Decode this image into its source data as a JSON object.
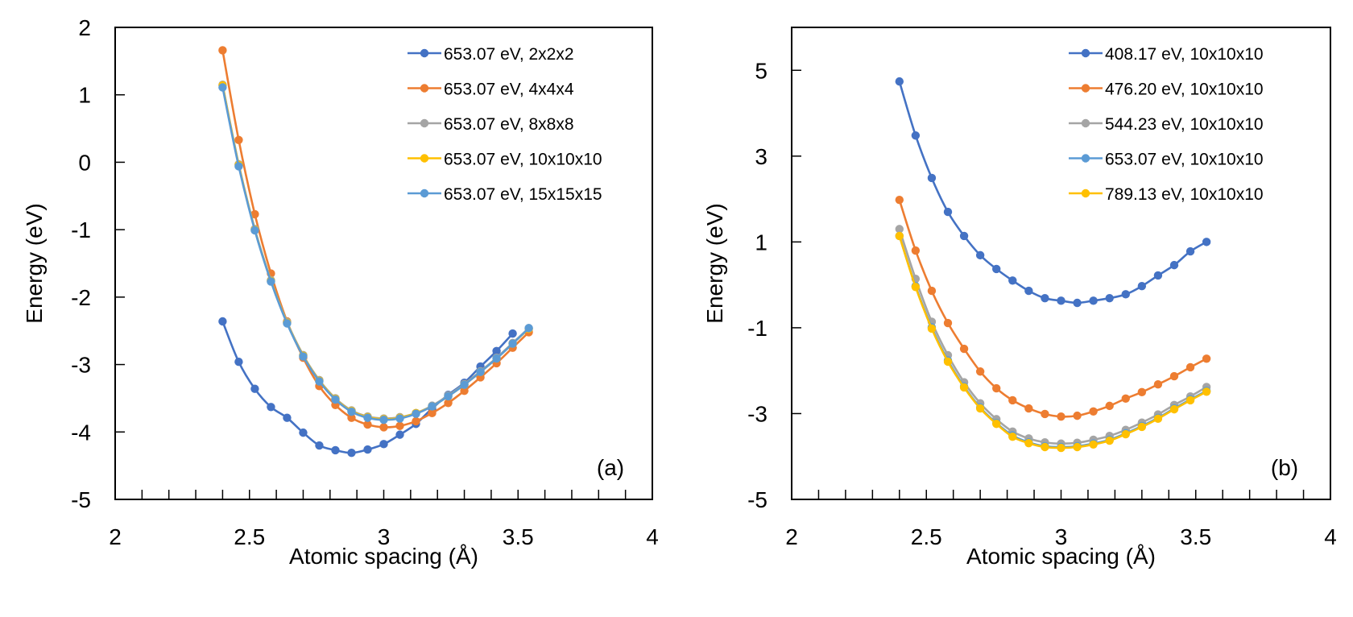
{
  "chart_data": [
    {
      "type": "line",
      "panel_label": "(a)",
      "xlabel": "Atomic spacing (Å)",
      "ylabel": "Energy (eV)",
      "xlim": [
        2,
        4
      ],
      "ylim": [
        -5,
        2
      ],
      "xticks": [
        2,
        2.5,
        3,
        3.5,
        4
      ],
      "xtick_labels": [
        "2",
        "2.5",
        "3",
        "3.5",
        "4"
      ],
      "x_minor_step": 0.1,
      "yticks": [
        -5,
        -4,
        -3,
        -2,
        -1,
        0,
        1,
        2
      ],
      "ytick_labels": [
        "-5",
        "-4",
        "-3",
        "-2",
        "-1",
        "0",
        "1",
        "2"
      ],
      "grid": false,
      "legend_position": "top-right",
      "x": [
        2.4,
        2.46,
        2.52,
        2.58,
        2.64,
        2.7,
        2.76,
        2.82,
        2.88,
        2.94,
        3.0,
        3.06,
        3.12,
        3.18,
        3.24,
        3.3,
        3.36,
        3.42,
        3.48,
        3.54
      ],
      "series": [
        {
          "name": "653.07 eV, 2x2x2",
          "color": "#4472C4",
          "values": [
            -2.36,
            -2.96,
            -3.36,
            -3.63,
            -3.79,
            -4.01,
            -4.2,
            -4.27,
            -4.31,
            -4.26,
            -4.18,
            -4.04,
            -3.88,
            -3.65,
            -3.45,
            -3.27,
            -3.03,
            -2.8,
            -2.54,
            null
          ]
        },
        {
          "name": "653.07 eV, 4x4x4",
          "color": "#ED7D31",
          "values": [
            1.66,
            0.33,
            -0.77,
            -1.65,
            -2.36,
            -2.9,
            -3.32,
            -3.6,
            -3.79,
            -3.89,
            -3.93,
            -3.91,
            -3.84,
            -3.72,
            -3.57,
            -3.39,
            -3.19,
            -2.98,
            -2.75,
            -2.52
          ]
        },
        {
          "name": "653.07 eV, 8x8x8",
          "color": "#A5A5A5",
          "values": [
            1.15,
            -0.03,
            -0.99,
            -1.75,
            -2.37,
            -2.86,
            -3.23,
            -3.5,
            -3.68,
            -3.77,
            -3.8,
            -3.78,
            -3.72,
            -3.61,
            -3.46,
            -3.29,
            -3.1,
            -2.9,
            -2.68,
            -2.46
          ]
        },
        {
          "name": "653.07 eV, 10x10x10",
          "color": "#FFC000",
          "values": [
            1.14,
            -0.04,
            -1.0,
            -1.76,
            -2.38,
            -2.87,
            -3.24,
            -3.51,
            -3.69,
            -3.78,
            -3.81,
            -3.79,
            -3.72,
            -3.62,
            -3.47,
            -3.3,
            -3.11,
            -2.91,
            -2.69,
            -2.47
          ]
        },
        {
          "name": "653.07 eV, 15x15x15",
          "color": "#5B9BD5",
          "values": [
            1.11,
            -0.06,
            -1.01,
            -1.77,
            -2.39,
            -2.88,
            -3.25,
            -3.52,
            -3.7,
            -3.79,
            -3.82,
            -3.8,
            -3.73,
            -3.62,
            -3.47,
            -3.3,
            -3.11,
            -2.91,
            -2.69,
            -2.46
          ]
        }
      ]
    },
    {
      "type": "line",
      "panel_label": "(b)",
      "xlabel": "Atomic spacing (Å)",
      "ylabel": "Energy (eV)",
      "xlim": [
        2,
        4
      ],
      "ylim": [
        -5,
        6
      ],
      "xticks": [
        2,
        2.5,
        3,
        3.5,
        4
      ],
      "xtick_labels": [
        "2",
        "2.5",
        "3",
        "3.5",
        "4"
      ],
      "x_minor_step": 0.1,
      "yticks": [
        -5,
        -3,
        -1,
        1,
        3,
        5
      ],
      "ytick_labels": [
        "-5",
        "-3",
        "-1",
        "1",
        "3",
        "5"
      ],
      "grid": false,
      "legend_position": "top-right",
      "x": [
        2.4,
        2.46,
        2.52,
        2.58,
        2.64,
        2.7,
        2.76,
        2.82,
        2.88,
        2.94,
        3.0,
        3.06,
        3.12,
        3.18,
        3.24,
        3.3,
        3.36,
        3.42,
        3.48,
        3.54
      ],
      "series": [
        {
          "name": "408.17 eV, 10x10x10",
          "color": "#4472C4",
          "values": [
            4.74,
            3.48,
            2.49,
            1.7,
            1.14,
            0.69,
            0.37,
            0.1,
            -0.14,
            -0.31,
            -0.37,
            -0.42,
            -0.37,
            -0.31,
            -0.22,
            -0.03,
            0.22,
            0.46,
            0.78,
            1.0
          ]
        },
        {
          "name": "476.20 eV, 10x10x10",
          "color": "#ED7D31",
          "values": [
            1.98,
            0.8,
            -0.14,
            -0.89,
            -1.49,
            -2.02,
            -2.41,
            -2.69,
            -2.88,
            -3.01,
            -3.07,
            -3.05,
            -2.95,
            -2.82,
            -2.65,
            -2.5,
            -2.32,
            -2.13,
            -1.92,
            -1.72
          ]
        },
        {
          "name": "544.23 eV, 10x10x10",
          "color": "#A5A5A5",
          "values": [
            1.3,
            0.14,
            -0.86,
            -1.64,
            -2.27,
            -2.76,
            -3.13,
            -3.42,
            -3.58,
            -3.67,
            -3.7,
            -3.68,
            -3.61,
            -3.52,
            -3.38,
            -3.21,
            -3.02,
            -2.8,
            -2.6,
            -2.38
          ]
        },
        {
          "name": "653.07 eV, 10x10x10",
          "color": "#5B9BD5",
          "values": [
            1.14,
            -0.03,
            -0.99,
            -1.76,
            -2.37,
            -2.86,
            -3.22,
            -3.51,
            -3.67,
            -3.76,
            -3.78,
            -3.76,
            -3.7,
            -3.61,
            -3.46,
            -3.29,
            -3.1,
            -2.88,
            -2.67,
            -2.47
          ]
        },
        {
          "name": "789.13 eV, 10x10x10",
          "color": "#FFC000",
          "values": [
            1.14,
            -0.05,
            -1.02,
            -1.79,
            -2.39,
            -2.88,
            -3.24,
            -3.54,
            -3.69,
            -3.78,
            -3.8,
            -3.78,
            -3.72,
            -3.63,
            -3.48,
            -3.31,
            -3.12,
            -2.9,
            -2.69,
            -2.49
          ]
        }
      ]
    }
  ]
}
